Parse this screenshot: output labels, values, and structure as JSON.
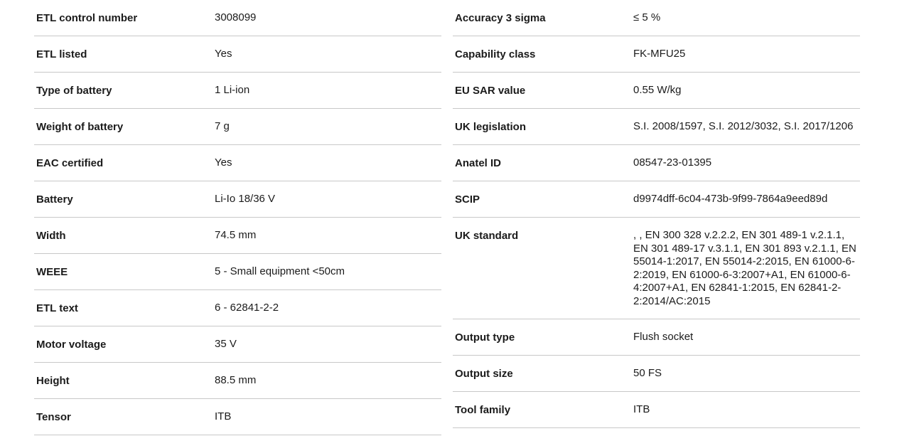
{
  "colors": {
    "divider": "#c8c8c8",
    "text": "#1b1b1b",
    "background": "#ffffff"
  },
  "spec_table": {
    "left_column": [
      {
        "label": "ETL control number",
        "value": "3008099"
      },
      {
        "label": "ETL listed",
        "value": "Yes"
      },
      {
        "label": "Type of battery",
        "value": "1 Li-ion"
      },
      {
        "label": "Weight of battery",
        "value": "7 g"
      },
      {
        "label": "EAC certified",
        "value": "Yes"
      },
      {
        "label": "Battery",
        "value": "Li-Io 18/36 V"
      },
      {
        "label": "Width",
        "value": "74.5 mm"
      },
      {
        "label": "WEEE",
        "value": "5 - Small equipment <50cm"
      },
      {
        "label": "ETL text",
        "value": "6 - 62841-2-2"
      },
      {
        "label": "Motor voltage",
        "value": "35 V"
      },
      {
        "label": "Height",
        "value": "88.5 mm"
      },
      {
        "label": "Tensor",
        "value": "ITB"
      }
    ],
    "right_column": [
      {
        "label": "Accuracy 3 sigma",
        "value": "≤ 5 %"
      },
      {
        "label": "Capability class",
        "value": "FK-MFU25"
      },
      {
        "label": "EU SAR value",
        "value": "0.55 W/kg"
      },
      {
        "label": "UK legislation",
        "value": "S.I. 2008/1597, S.I. 2012/3032, S.I. 2017/1206"
      },
      {
        "label": "Anatel ID",
        "value": "08547-23-01395"
      },
      {
        "label": "SCIP",
        "value": "d9974dff-6c04-473b-9f99-7864a9eed89d"
      },
      {
        "label": "UK standard",
        "value": ", , EN 300 328 v.2.2.2, EN 301 489-1 v.2.1.1, EN 301 489-17 v.3.1.1, EN 301 893 v.2.1.1, EN 55014-1:2017, EN 55014-2:2015, EN 61000-6-2:2019, EN 61000-6-3:2007+A1, EN 61000-6-4:2007+A1, EN 62841-1:2015, EN 62841-2-2:2014/AC:2015"
      },
      {
        "label": "Output type",
        "value": "Flush socket"
      },
      {
        "label": "Output size",
        "value": "50 FS"
      },
      {
        "label": "Tool family",
        "value": "ITB"
      }
    ]
  }
}
